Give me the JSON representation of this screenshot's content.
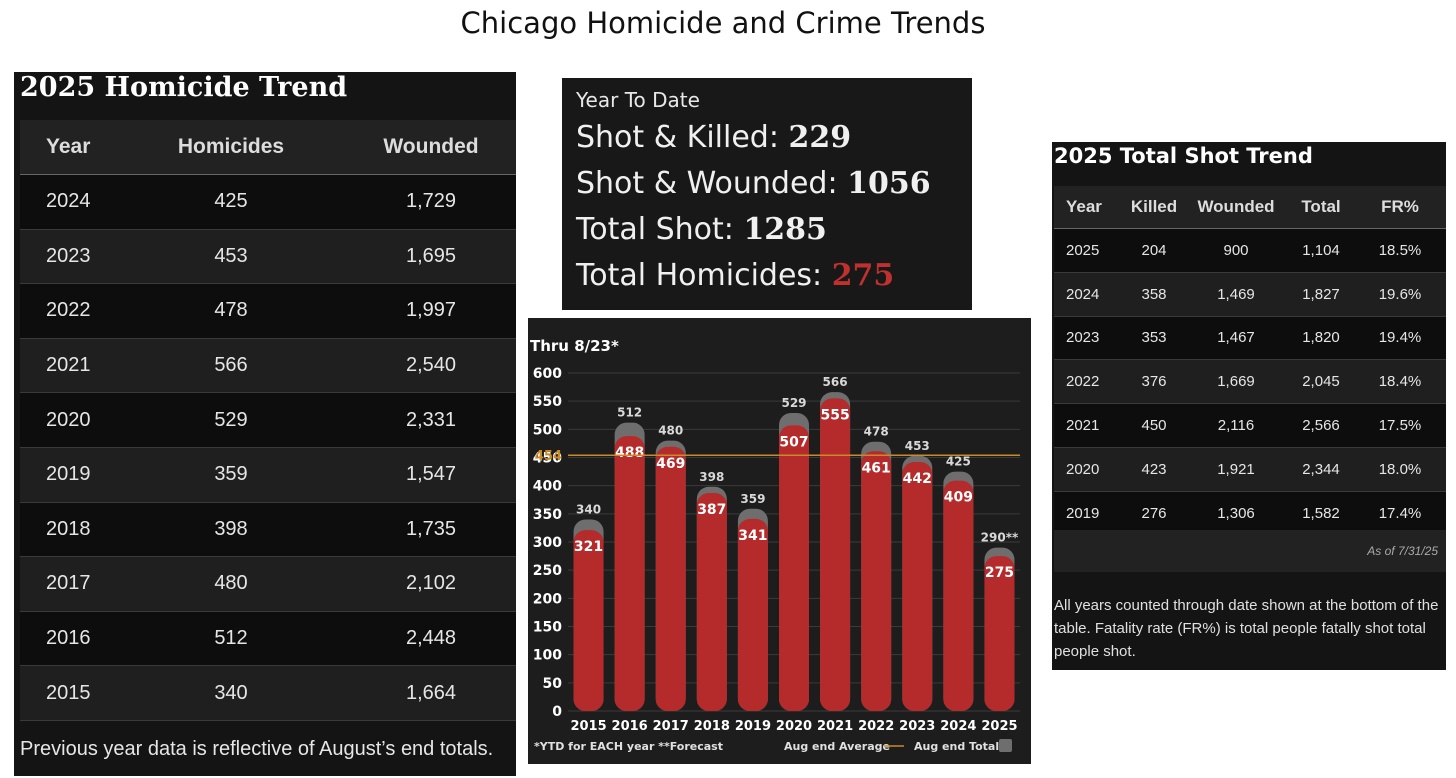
{
  "page_title": "Chicago Homicide and Crime Trends",
  "homicide_trend": {
    "title": "2025 Homicide Trend",
    "headers": [
      "Year",
      "Homicides",
      "Wounded"
    ],
    "rows": [
      [
        "2024",
        "425",
        "1,729"
      ],
      [
        "2023",
        "453",
        "1,695"
      ],
      [
        "2022",
        "478",
        "1,997"
      ],
      [
        "2021",
        "566",
        "2,540"
      ],
      [
        "2020",
        "529",
        "2,331"
      ],
      [
        "2019",
        "359",
        "1,547"
      ],
      [
        "2018",
        "398",
        "1,735"
      ],
      [
        "2017",
        "480",
        "2,102"
      ],
      [
        "2016",
        "512",
        "2,448"
      ],
      [
        "2015",
        "340",
        "1,664"
      ]
    ],
    "footnote": "Previous year data is reflective of August’s end totals."
  },
  "ytd": {
    "heading": "Year To Date",
    "shot_killed_label": "Shot & Killed:",
    "shot_killed_value": "229",
    "shot_wounded_label": "Shot & Wounded:",
    "shot_wounded_value": "1056",
    "total_shot_label": "Total Shot:",
    "total_shot_value": "1285",
    "total_homicides_label": "Total Homicides:",
    "total_homicides_value": "275",
    "highlight_color": "#c0302e"
  },
  "chart_data": {
    "type": "bar",
    "title": "Thru 8/23*",
    "categories": [
      "2015",
      "2016",
      "2017",
      "2018",
      "2019",
      "2020",
      "2021",
      "2022",
      "2023",
      "2024",
      "2025"
    ],
    "series": [
      {
        "name": "Aug end Totals",
        "values": [
          340,
          512,
          480,
          398,
          359,
          529,
          566,
          478,
          453,
          425,
          290
        ],
        "color": "#6e6e6e"
      },
      {
        "values": [
          321,
          488,
          469,
          387,
          341,
          507,
          555,
          461,
          442,
          409,
          275
        ],
        "color": "#b52a2a"
      }
    ],
    "top_labels": [
      "340",
      "512",
      "480",
      "398",
      "359",
      "529",
      "566",
      "478",
      "453",
      "425",
      "290**"
    ],
    "average_line": {
      "name": "Aug end Average",
      "value": 454,
      "label": "454",
      "color": "#c98a2a"
    },
    "ylim": [
      0,
      600
    ],
    "yticks": [
      0,
      50,
      100,
      150,
      200,
      250,
      300,
      350,
      400,
      450,
      500,
      550,
      600
    ],
    "grid": true,
    "legend_note": "*YTD for EACH year **Forecast",
    "legend_average_label": "Aug end Average",
    "legend_totals_label": "Aug end Totals",
    "legend_placement": "bottom"
  },
  "shot_trend": {
    "title": "2025 Total Shot Trend",
    "headers": [
      "Year",
      "Killed",
      "Wounded",
      "Total",
      "FR%"
    ],
    "rows": [
      [
        "2025",
        "204",
        "900",
        "1,104",
        "18.5%"
      ],
      [
        "2024",
        "358",
        "1,469",
        "1,827",
        "19.6%"
      ],
      [
        "2023",
        "353",
        "1,467",
        "1,820",
        "19.4%"
      ],
      [
        "2022",
        "376",
        "1,669",
        "2,045",
        "18.4%"
      ],
      [
        "2021",
        "450",
        "2,116",
        "2,566",
        "17.5%"
      ],
      [
        "2020",
        "423",
        "1,921",
        "2,344",
        "18.0%"
      ],
      [
        "2019",
        "276",
        "1,306",
        "1,582",
        "17.4%"
      ]
    ],
    "as_of": "As of 7/31/25",
    "note": "All years counted through date shown at the bottom of the table. Fatality rate (FR%) is total people fatally shot total people shot."
  }
}
